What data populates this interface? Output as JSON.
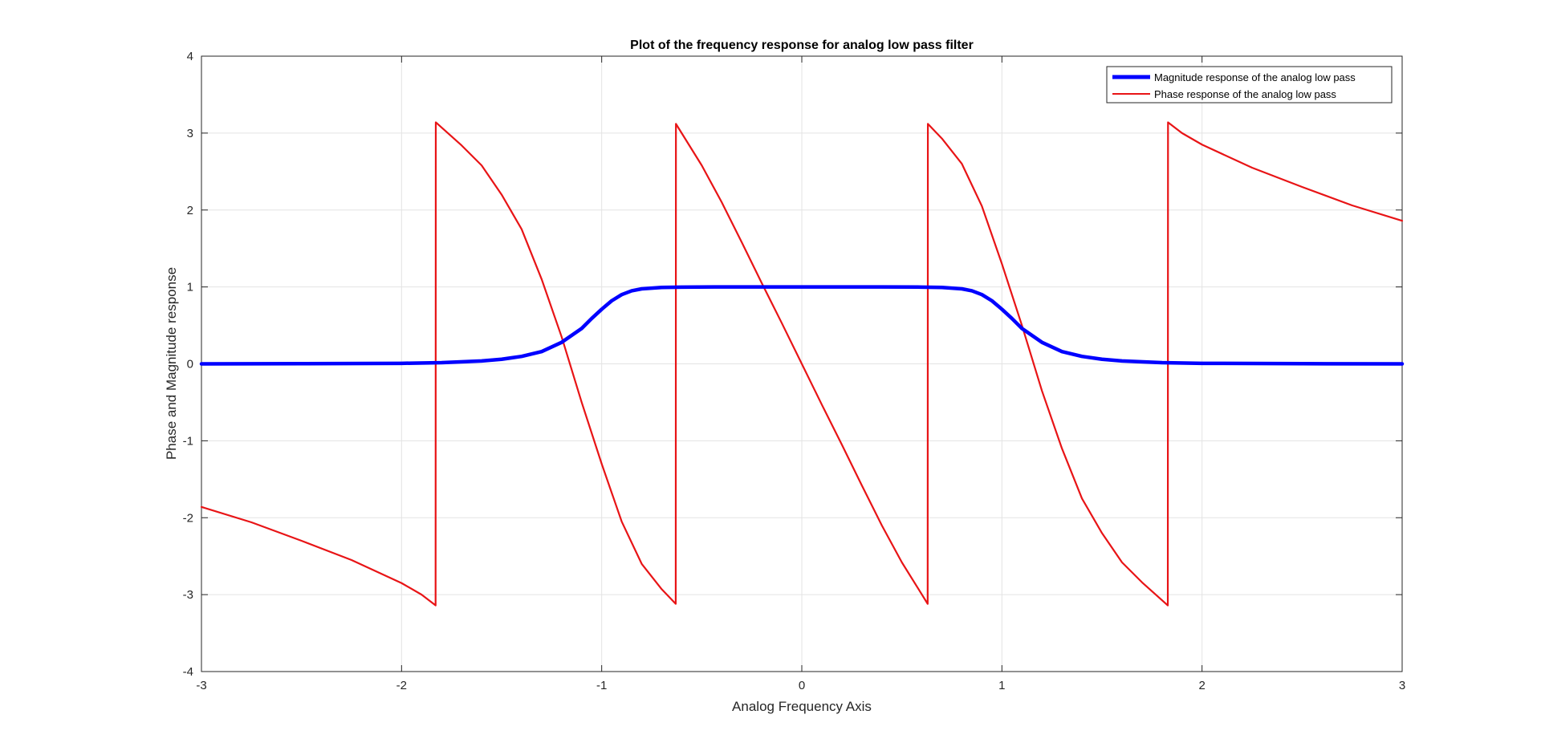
{
  "chart_data": {
    "type": "line",
    "title": "Plot of the frequency response for analog low pass filter",
    "xlabel": "Analog Frequency Axis",
    "ylabel": "Phase and Magnitude response",
    "xlim": [
      -3,
      3
    ],
    "ylim": [
      -4,
      4
    ],
    "xticks": [
      -3,
      -2,
      -1,
      0,
      1,
      2,
      3
    ],
    "yticks": [
      -4,
      -3,
      -2,
      -1,
      0,
      1,
      2,
      3,
      4
    ],
    "xtick_labels": [
      "-3",
      "-2",
      "-1",
      "0",
      "1",
      "2",
      "3"
    ],
    "ytick_labels": [
      "-4",
      "-3",
      "-2",
      "-1",
      "0",
      "1",
      "2",
      "3",
      "4"
    ],
    "grid": true,
    "legend_position": "top-right",
    "series": [
      {
        "name": "Magnitude response of the analog low pass",
        "color": "#0000ff",
        "line_width": "thick",
        "x": [
          -3.0,
          -2.5,
          -2.0,
          -1.8,
          -1.6,
          -1.5,
          -1.4,
          -1.3,
          -1.2,
          -1.1,
          -1.05,
          -1.0,
          -0.95,
          -0.9,
          -0.85,
          -0.8,
          -0.7,
          -0.6,
          -0.4,
          0.0,
          0.4,
          0.6,
          0.7,
          0.8,
          0.85,
          0.9,
          0.95,
          1.0,
          1.05,
          1.1,
          1.2,
          1.3,
          1.4,
          1.5,
          1.6,
          1.8,
          2.0,
          2.5,
          3.0
        ],
        "y": [
          0.0,
          0.002,
          0.007,
          0.016,
          0.038,
          0.06,
          0.097,
          0.16,
          0.28,
          0.46,
          0.59,
          0.71,
          0.82,
          0.9,
          0.95,
          0.975,
          0.993,
          0.998,
          1.0,
          1.0,
          1.0,
          0.998,
          0.993,
          0.975,
          0.95,
          0.9,
          0.82,
          0.71,
          0.59,
          0.46,
          0.28,
          0.16,
          0.097,
          0.06,
          0.038,
          0.016,
          0.007,
          0.002,
          0.0
        ]
      },
      {
        "name": "Phase response of the analog low pass",
        "color": "#e81416",
        "line_width": "normal",
        "x": [
          -3.0,
          -2.75,
          -2.5,
          -2.25,
          -2.0,
          -1.9,
          -1.83,
          -1.829,
          -1.7,
          -1.6,
          -1.5,
          -1.4,
          -1.3,
          -1.2,
          -1.1,
          -1.0,
          -0.9,
          -0.8,
          -0.7,
          -0.63,
          -0.629,
          -0.5,
          -0.4,
          -0.3,
          -0.2,
          -0.1,
          0.0,
          0.1,
          0.2,
          0.3,
          0.4,
          0.5,
          0.629,
          0.63,
          0.7,
          0.8,
          0.9,
          1.0,
          1.1,
          1.2,
          1.3,
          1.4,
          1.5,
          1.6,
          1.7,
          1.829,
          1.83,
          1.9,
          2.0,
          2.25,
          2.5,
          2.75,
          3.0
        ],
        "y": [
          -1.86,
          -2.06,
          -2.3,
          -2.55,
          -2.85,
          -3.0,
          -3.14,
          3.14,
          2.84,
          2.58,
          2.2,
          1.75,
          1.1,
          0.35,
          -0.5,
          -1.3,
          -2.05,
          -2.6,
          -2.93,
          -3.12,
          3.12,
          2.58,
          2.1,
          1.58,
          1.05,
          0.53,
          0.0,
          -0.53,
          -1.05,
          -1.58,
          -2.1,
          -2.58,
          -3.12,
          3.12,
          2.93,
          2.6,
          2.05,
          1.3,
          0.5,
          -0.35,
          -1.1,
          -1.75,
          -2.2,
          -2.58,
          -2.84,
          -3.14,
          3.14,
          3.0,
          2.85,
          2.55,
          2.3,
          2.06,
          1.86
        ]
      }
    ]
  }
}
